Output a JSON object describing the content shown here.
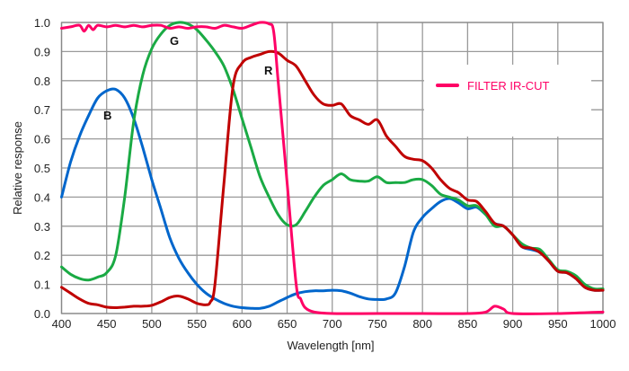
{
  "chart_data": {
    "type": "line",
    "title": "",
    "xlabel": "Wavelength [nm]",
    "ylabel": "Relative response",
    "xlim": [
      400,
      1000
    ],
    "ylim": [
      0,
      1.0
    ],
    "x_ticks": [
      "400",
      "450",
      "500",
      "550",
      "600",
      "650",
      "700",
      "750",
      "800",
      "850",
      "900",
      "950",
      "1000"
    ],
    "y_ticks": [
      "0.0",
      "0.1",
      "0.2",
      "0.3",
      "0.4",
      "0.5",
      "0.6",
      "0.7",
      "0.8",
      "0.9",
      "1.0"
    ],
    "grid": true,
    "legend": {
      "position": "top-right",
      "entries": [
        {
          "label": "FILTER IR-CUT",
          "color": "#ff0066"
        }
      ]
    },
    "series": [
      {
        "name": "B",
        "color": "#0066cc",
        "x": [
          400,
          410,
          420,
          430,
          440,
          450,
          460,
          470,
          480,
          490,
          500,
          510,
          520,
          530,
          540,
          550,
          560,
          570,
          580,
          590,
          600,
          610,
          620,
          630,
          640,
          650,
          660,
          670,
          680,
          690,
          700,
          710,
          720,
          730,
          740,
          750,
          760,
          770,
          780,
          790,
          800,
          810,
          820,
          830,
          840,
          850,
          860,
          870,
          880,
          890,
          900,
          910,
          920,
          930,
          940,
          950,
          960,
          970,
          980,
          990,
          1000
        ],
        "y": [
          0.4,
          0.52,
          0.61,
          0.68,
          0.74,
          0.765,
          0.77,
          0.74,
          0.67,
          0.57,
          0.46,
          0.36,
          0.26,
          0.19,
          0.14,
          0.1,
          0.07,
          0.05,
          0.035,
          0.025,
          0.02,
          0.018,
          0.018,
          0.025,
          0.04,
          0.055,
          0.068,
          0.075,
          0.078,
          0.078,
          0.08,
          0.078,
          0.07,
          0.058,
          0.05,
          0.048,
          0.05,
          0.07,
          0.16,
          0.28,
          0.33,
          0.36,
          0.385,
          0.395,
          0.38,
          0.36,
          0.365,
          0.34,
          0.31,
          0.3,
          0.27,
          0.23,
          0.22,
          0.21,
          0.18,
          0.145,
          0.14,
          0.12,
          0.09,
          0.08,
          0.08
        ]
      },
      {
        "name": "G",
        "color": "#1aaa44",
        "x": [
          400,
          410,
          420,
          430,
          440,
          450,
          460,
          470,
          480,
          490,
          500,
          510,
          520,
          530,
          540,
          550,
          560,
          570,
          580,
          590,
          600,
          610,
          620,
          630,
          640,
          650,
          660,
          670,
          680,
          690,
          700,
          710,
          720,
          730,
          740,
          750,
          760,
          770,
          780,
          790,
          800,
          810,
          820,
          830,
          840,
          850,
          860,
          870,
          880,
          890,
          900,
          910,
          920,
          930,
          940,
          950,
          960,
          970,
          980,
          990,
          1000
        ],
        "y": [
          0.16,
          0.135,
          0.12,
          0.115,
          0.125,
          0.14,
          0.2,
          0.4,
          0.66,
          0.82,
          0.91,
          0.96,
          0.99,
          1.0,
          0.995,
          0.975,
          0.94,
          0.9,
          0.85,
          0.77,
          0.67,
          0.57,
          0.47,
          0.4,
          0.34,
          0.305,
          0.305,
          0.35,
          0.4,
          0.44,
          0.46,
          0.48,
          0.46,
          0.455,
          0.455,
          0.47,
          0.45,
          0.45,
          0.45,
          0.46,
          0.46,
          0.44,
          0.41,
          0.4,
          0.39,
          0.37,
          0.37,
          0.34,
          0.3,
          0.3,
          0.27,
          0.24,
          0.225,
          0.22,
          0.185,
          0.15,
          0.145,
          0.13,
          0.1,
          0.085,
          0.085
        ]
      },
      {
        "name": "R",
        "color": "#c00000",
        "x": [
          400,
          410,
          420,
          430,
          440,
          450,
          460,
          470,
          480,
          490,
          500,
          510,
          520,
          530,
          540,
          550,
          560,
          565,
          570,
          580,
          590,
          600,
          610,
          620,
          630,
          640,
          650,
          660,
          670,
          680,
          690,
          700,
          710,
          720,
          730,
          740,
          750,
          760,
          770,
          780,
          790,
          800,
          810,
          820,
          830,
          840,
          850,
          860,
          870,
          880,
          890,
          900,
          910,
          920,
          930,
          940,
          950,
          960,
          970,
          980,
          990,
          1000
        ],
        "y": [
          0.09,
          0.07,
          0.05,
          0.035,
          0.03,
          0.022,
          0.02,
          0.022,
          0.025,
          0.025,
          0.028,
          0.04,
          0.055,
          0.06,
          0.05,
          0.035,
          0.03,
          0.04,
          0.1,
          0.45,
          0.78,
          0.86,
          0.88,
          0.89,
          0.9,
          0.895,
          0.87,
          0.85,
          0.8,
          0.75,
          0.72,
          0.715,
          0.72,
          0.68,
          0.665,
          0.65,
          0.665,
          0.61,
          0.575,
          0.54,
          0.53,
          0.525,
          0.5,
          0.46,
          0.43,
          0.415,
          0.39,
          0.385,
          0.35,
          0.31,
          0.3,
          0.27,
          0.23,
          0.225,
          0.21,
          0.18,
          0.145,
          0.14,
          0.12,
          0.09,
          0.08,
          0.08
        ]
      },
      {
        "name": "FILTER IR-CUT",
        "color": "#ff0066",
        "x": [
          400,
          410,
          420,
          425,
          430,
          435,
          440,
          450,
          460,
          470,
          480,
          490,
          500,
          510,
          520,
          530,
          540,
          550,
          560,
          570,
          580,
          590,
          600,
          610,
          620,
          630,
          635,
          640,
          650,
          660,
          665,
          670,
          680,
          700,
          750,
          800,
          850,
          870,
          880,
          890,
          900,
          950,
          1000
        ],
        "y": [
          0.98,
          0.985,
          0.99,
          0.97,
          0.99,
          0.975,
          0.99,
          0.985,
          0.99,
          0.985,
          0.99,
          0.985,
          0.99,
          0.99,
          0.98,
          0.985,
          0.98,
          0.985,
          0.985,
          0.98,
          0.99,
          0.985,
          0.98,
          0.99,
          1.0,
          0.995,
          0.97,
          0.8,
          0.45,
          0.1,
          0.05,
          0.02,
          0.005,
          0.0,
          0.0,
          0.0,
          0.0,
          0.005,
          0.025,
          0.015,
          0.0,
          0.0,
          0.005
        ]
      }
    ]
  }
}
